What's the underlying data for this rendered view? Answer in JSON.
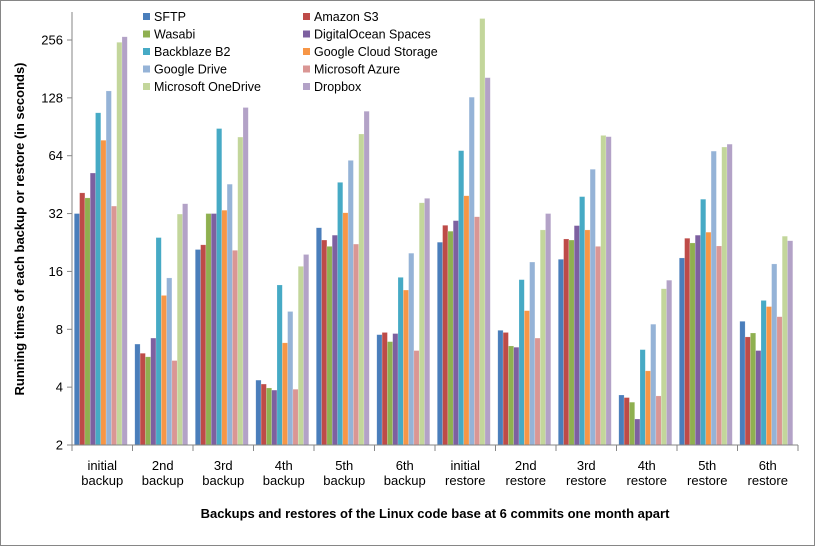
{
  "chart_data": {
    "type": "bar",
    "title": "",
    "xlabel": "Backups and restores of the Linux code base at 6 commits one month apart",
    "ylabel": "Running times of each backup or restore (in seconds)",
    "yscale": "log2",
    "ylim": [
      2,
      358
    ],
    "yticks": [
      "2",
      "4",
      "8",
      "16",
      "32",
      "64",
      "128",
      "256"
    ],
    "grid": false,
    "legend_position": "top-left, two columns",
    "categories": [
      [
        "initial",
        "backup"
      ],
      [
        "2nd",
        "backup"
      ],
      [
        "3rd",
        "backup"
      ],
      [
        "4th",
        "backup"
      ],
      [
        "5th",
        "backup"
      ],
      [
        "6th",
        "backup"
      ],
      [
        "initial",
        "restore"
      ],
      [
        "2nd",
        "restore"
      ],
      [
        "3rd",
        "restore"
      ],
      [
        "4th",
        "restore"
      ],
      [
        "5th",
        "restore"
      ],
      [
        "6th",
        "restore"
      ]
    ],
    "series": [
      {
        "name": "SFTP",
        "color": "#4A7EBB",
        "values": [
          32,
          6.7,
          20.8,
          4.35,
          27,
          7.5,
          22.7,
          7.9,
          18.5,
          3.64,
          18.8,
          8.8
        ]
      },
      {
        "name": "Amazon S3",
        "color": "#BE4B48",
        "values": [
          41,
          6.0,
          22,
          4.15,
          23.3,
          7.7,
          27.8,
          7.7,
          23.6,
          3.53,
          23.8,
          7.3
        ]
      },
      {
        "name": "Wasabi",
        "color": "#8FB050",
        "values": [
          38.6,
          5.75,
          32,
          3.96,
          21.6,
          6.9,
          25.9,
          6.55,
          23.3,
          3.34,
          22.5,
          7.65
        ]
      },
      {
        "name": "DigitalOcean Spaces",
        "color": "#7D60A0",
        "values": [
          52,
          7.2,
          32,
          3.86,
          24.7,
          7.6,
          29.4,
          6.45,
          27.7,
          2.73,
          24.7,
          6.2
        ]
      },
      {
        "name": "Backblaze B2",
        "color": "#46AAC5",
        "values": [
          107,
          24,
          88.6,
          13.6,
          46.5,
          14.9,
          68,
          14.5,
          39.2,
          6.27,
          38,
          11.3
        ]
      },
      {
        "name": "Google Cloud Storage",
        "color": "#F79646",
        "values": [
          77,
          12,
          33.3,
          6.8,
          32.3,
          12.8,
          39.6,
          10,
          26.3,
          4.86,
          25.6,
          10.5
        ]
      },
      {
        "name": "Google Drive",
        "color": "#95B3D7",
        "values": [
          139,
          14.8,
          45.5,
          9.9,
          60.5,
          19.9,
          129,
          17.9,
          54.4,
          8.5,
          67.6,
          17.5
        ]
      },
      {
        "name": "Microsoft Azure",
        "color": "#DA9694",
        "values": [
          35,
          5.5,
          20.6,
          3.9,
          22.2,
          6.2,
          30.8,
          7.2,
          21.6,
          3.6,
          21.7,
          9.3
        ]
      },
      {
        "name": "Microsoft OneDrive",
        "color": "#C3D69B",
        "values": [
          249,
          31.8,
          80,
          17,
          83,
          36.4,
          331,
          26.3,
          81.6,
          13,
          71,
          24.4
        ]
      },
      {
        "name": "Dropbox",
        "color": "#B3A2C7",
        "values": [
          266,
          36,
          114,
          19.6,
          109,
          38.4,
          163,
          32,
          80.4,
          14.4,
          73.5,
          23.1
        ]
      }
    ]
  }
}
